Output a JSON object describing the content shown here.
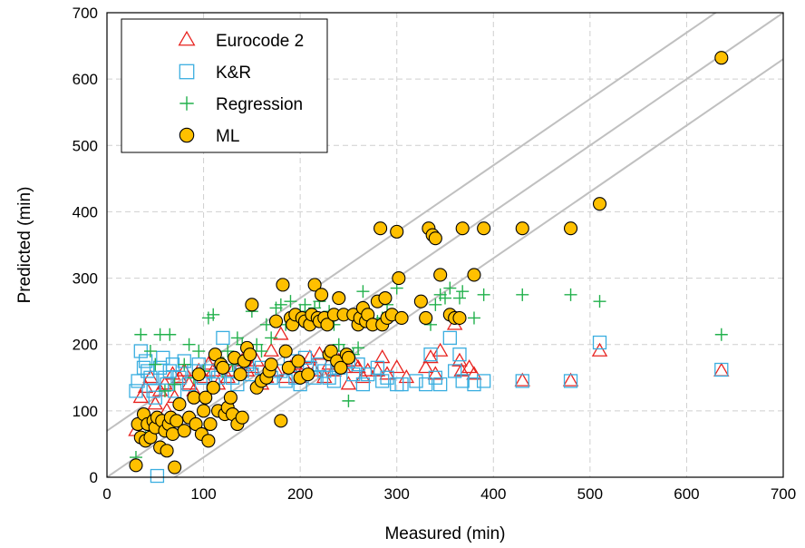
{
  "chart_data": {
    "type": "scatter",
    "title": "",
    "xlabel": "Measured (min)",
    "ylabel": "Predicted (min)",
    "xlim": [
      0,
      700
    ],
    "ylim": [
      0,
      700
    ],
    "xticks": [
      "0",
      "100",
      "200",
      "300",
      "400",
      "500",
      "600",
      "700"
    ],
    "yticks": [
      "0",
      "100",
      "200",
      "300",
      "400",
      "500",
      "600",
      "700"
    ],
    "grid": true,
    "legend_position": "top-left",
    "reference_lines": [
      {
        "slope": 1,
        "intercept": 70
      },
      {
        "slope": 1,
        "intercept": 0
      },
      {
        "slope": 1,
        "intercept": -70
      }
    ],
    "series": [
      {
        "name": "Eurocode 2",
        "marker": "triangle",
        "color": "#e8231f",
        "points": [
          [
            30,
            70
          ],
          [
            35,
            120
          ],
          [
            40,
            135
          ],
          [
            42,
            90
          ],
          [
            45,
            150
          ],
          [
            50,
            110
          ],
          [
            55,
            130
          ],
          [
            60,
            140
          ],
          [
            62,
            100
          ],
          [
            68,
            155
          ],
          [
            70,
            120
          ],
          [
            75,
            150
          ],
          [
            80,
            160
          ],
          [
            85,
            140
          ],
          [
            90,
            130
          ],
          [
            95,
            160
          ],
          [
            100,
            150
          ],
          [
            105,
            170
          ],
          [
            110,
            160
          ],
          [
            115,
            140
          ],
          [
            120,
            170
          ],
          [
            125,
            150
          ],
          [
            130,
            160
          ],
          [
            140,
            175
          ],
          [
            145,
            160
          ],
          [
            150,
            165
          ],
          [
            155,
            175
          ],
          [
            160,
            140
          ],
          [
            165,
            150
          ],
          [
            170,
            190
          ],
          [
            175,
            160
          ],
          [
            180,
            215
          ],
          [
            185,
            150
          ],
          [
            190,
            165
          ],
          [
            195,
            170
          ],
          [
            200,
            150
          ],
          [
            205,
            165
          ],
          [
            210,
            180
          ],
          [
            215,
            160
          ],
          [
            220,
            185
          ],
          [
            225,
            150
          ],
          [
            230,
            170
          ],
          [
            235,
            160
          ],
          [
            240,
            175
          ],
          [
            245,
            165
          ],
          [
            250,
            140
          ],
          [
            255,
            175
          ],
          [
            260,
            165
          ],
          [
            265,
            150
          ],
          [
            270,
            160
          ],
          [
            280,
            160
          ],
          [
            285,
            180
          ],
          [
            290,
            155
          ],
          [
            300,
            165
          ],
          [
            310,
            150
          ],
          [
            330,
            165
          ],
          [
            335,
            180
          ],
          [
            340,
            155
          ],
          [
            345,
            190
          ],
          [
            360,
            230
          ],
          [
            365,
            175
          ],
          [
            367,
            160
          ],
          [
            375,
            165
          ],
          [
            380,
            155
          ],
          [
            430,
            145
          ],
          [
            480,
            145
          ],
          [
            510,
            190
          ],
          [
            636,
            160
          ]
        ]
      },
      {
        "name": "K&R",
        "marker": "square",
        "color": "#3aaee0",
        "points": [
          [
            30,
            130
          ],
          [
            32,
            145
          ],
          [
            35,
            190
          ],
          [
            38,
            165
          ],
          [
            40,
            175
          ],
          [
            42,
            160
          ],
          [
            45,
            150
          ],
          [
            48,
            130
          ],
          [
            50,
            120
          ],
          [
            52,
            2
          ],
          [
            55,
            165
          ],
          [
            58,
            180
          ],
          [
            60,
            150
          ],
          [
            62,
            140
          ],
          [
            65,
            160
          ],
          [
            68,
            170
          ],
          [
            70,
            130
          ],
          [
            75,
            150
          ],
          [
            80,
            175
          ],
          [
            85,
            140
          ],
          [
            90,
            160
          ],
          [
            95,
            170
          ],
          [
            100,
            150
          ],
          [
            105,
            160
          ],
          [
            110,
            140
          ],
          [
            115,
            150
          ],
          [
            120,
            210
          ],
          [
            125,
            160
          ],
          [
            130,
            150
          ],
          [
            135,
            140
          ],
          [
            140,
            160
          ],
          [
            145,
            170
          ],
          [
            150,
            155
          ],
          [
            160,
            165
          ],
          [
            170,
            150
          ],
          [
            180,
            160
          ],
          [
            185,
            145
          ],
          [
            190,
            175
          ],
          [
            195,
            150
          ],
          [
            200,
            140
          ],
          [
            205,
            180
          ],
          [
            210,
            165
          ],
          [
            215,
            150
          ],
          [
            220,
            170
          ],
          [
            225,
            160
          ],
          [
            230,
            150
          ],
          [
            235,
            145
          ],
          [
            240,
            165
          ],
          [
            250,
            175
          ],
          [
            255,
            155
          ],
          [
            260,
            170
          ],
          [
            265,
            140
          ],
          [
            270,
            155
          ],
          [
            280,
            165
          ],
          [
            285,
            145
          ],
          [
            290,
            150
          ],
          [
            300,
            140
          ],
          [
            305,
            140
          ],
          [
            320,
            145
          ],
          [
            330,
            140
          ],
          [
            335,
            185
          ],
          [
            340,
            150
          ],
          [
            345,
            140
          ],
          [
            355,
            210
          ],
          [
            360,
            160
          ],
          [
            365,
            185
          ],
          [
            368,
            145
          ],
          [
            380,
            140
          ],
          [
            390,
            145
          ],
          [
            430,
            145
          ],
          [
            480,
            145
          ],
          [
            510,
            203
          ],
          [
            636,
            162
          ]
        ]
      },
      {
        "name": "Regression",
        "marker": "plus",
        "color": "#22b14c",
        "points": [
          [
            30,
            30
          ],
          [
            35,
            215
          ],
          [
            40,
            60
          ],
          [
            45,
            190
          ],
          [
            50,
            170
          ],
          [
            55,
            215
          ],
          [
            60,
            130
          ],
          [
            65,
            215
          ],
          [
            70,
            140
          ],
          [
            75,
            110
          ],
          [
            80,
            170
          ],
          [
            85,
            200
          ],
          [
            90,
            150
          ],
          [
            95,
            190
          ],
          [
            100,
            160
          ],
          [
            105,
            240
          ],
          [
            110,
            245
          ],
          [
            115,
            180
          ],
          [
            120,
            160
          ],
          [
            125,
            190
          ],
          [
            130,
            170
          ],
          [
            135,
            210
          ],
          [
            140,
            200
          ],
          [
            145,
            180
          ],
          [
            150,
            250
          ],
          [
            155,
            200
          ],
          [
            160,
            190
          ],
          [
            165,
            230
          ],
          [
            170,
            210
          ],
          [
            175,
            255
          ],
          [
            180,
            260
          ],
          [
            185,
            230
          ],
          [
            190,
            265
          ],
          [
            195,
            230
          ],
          [
            200,
            250
          ],
          [
            205,
            260
          ],
          [
            210,
            245
          ],
          [
            215,
            255
          ],
          [
            220,
            265
          ],
          [
            225,
            240
          ],
          [
            230,
            250
          ],
          [
            235,
            230
          ],
          [
            240,
            200
          ],
          [
            245,
            190
          ],
          [
            250,
            115
          ],
          [
            255,
            185
          ],
          [
            260,
            195
          ],
          [
            265,
            280
          ],
          [
            270,
            240
          ],
          [
            280,
            235
          ],
          [
            285,
            240
          ],
          [
            290,
            260
          ],
          [
            300,
            285
          ],
          [
            330,
            240
          ],
          [
            335,
            230
          ],
          [
            340,
            260
          ],
          [
            345,
            275
          ],
          [
            350,
            270
          ],
          [
            355,
            285
          ],
          [
            360,
            240
          ],
          [
            365,
            270
          ],
          [
            368,
            280
          ],
          [
            380,
            240
          ],
          [
            390,
            275
          ],
          [
            430,
            275
          ],
          [
            480,
            275
          ],
          [
            510,
            265
          ],
          [
            636,
            215
          ]
        ]
      },
      {
        "name": "ML",
        "marker": "circle",
        "color": "#ffc000",
        "points": [
          [
            30,
            18
          ],
          [
            32,
            80
          ],
          [
            35,
            60
          ],
          [
            38,
            95
          ],
          [
            40,
            55
          ],
          [
            42,
            80
          ],
          [
            45,
            60
          ],
          [
            48,
            85
          ],
          [
            50,
            75
          ],
          [
            52,
            90
          ],
          [
            55,
            45
          ],
          [
            57,
            85
          ],
          [
            60,
            70
          ],
          [
            62,
            40
          ],
          [
            64,
            80
          ],
          [
            66,
            90
          ],
          [
            68,
            65
          ],
          [
            70,
            15
          ],
          [
            72,
            85
          ],
          [
            75,
            110
          ],
          [
            80,
            70
          ],
          [
            85,
            90
          ],
          [
            90,
            120
          ],
          [
            92,
            80
          ],
          [
            95,
            155
          ],
          [
            98,
            65
          ],
          [
            100,
            100
          ],
          [
            102,
            120
          ],
          [
            105,
            55
          ],
          [
            107,
            80
          ],
          [
            110,
            135
          ],
          [
            112,
            185
          ],
          [
            115,
            100
          ],
          [
            118,
            170
          ],
          [
            120,
            165
          ],
          [
            122,
            95
          ],
          [
            125,
            105
          ],
          [
            128,
            120
          ],
          [
            130,
            95
          ],
          [
            132,
            180
          ],
          [
            135,
            80
          ],
          [
            138,
            155
          ],
          [
            140,
            90
          ],
          [
            142,
            175
          ],
          [
            145,
            195
          ],
          [
            148,
            185
          ],
          [
            150,
            260
          ],
          [
            155,
            135
          ],
          [
            160,
            145
          ],
          [
            165,
            150
          ],
          [
            168,
            160
          ],
          [
            170,
            170
          ],
          [
            175,
            235
          ],
          [
            180,
            85
          ],
          [
            182,
            290
          ],
          [
            185,
            190
          ],
          [
            188,
            165
          ],
          [
            190,
            240
          ],
          [
            192,
            230
          ],
          [
            195,
            245
          ],
          [
            198,
            175
          ],
          [
            200,
            150
          ],
          [
            202,
            240
          ],
          [
            205,
            235
          ],
          [
            208,
            155
          ],
          [
            210,
            230
          ],
          [
            212,
            245
          ],
          [
            215,
            290
          ],
          [
            218,
            240
          ],
          [
            220,
            235
          ],
          [
            222,
            275
          ],
          [
            225,
            240
          ],
          [
            228,
            230
          ],
          [
            230,
            185
          ],
          [
            232,
            190
          ],
          [
            235,
            245
          ],
          [
            238,
            175
          ],
          [
            240,
            270
          ],
          [
            242,
            165
          ],
          [
            245,
            245
          ],
          [
            248,
            185
          ],
          [
            250,
            180
          ],
          [
            255,
            245
          ],
          [
            260,
            230
          ],
          [
            262,
            240
          ],
          [
            265,
            255
          ],
          [
            268,
            235
          ],
          [
            270,
            245
          ],
          [
            275,
            230
          ],
          [
            280,
            265
          ],
          [
            283,
            375
          ],
          [
            285,
            230
          ],
          [
            288,
            270
          ],
          [
            290,
            240
          ],
          [
            295,
            245
          ],
          [
            300,
            370
          ],
          [
            302,
            300
          ],
          [
            305,
            240
          ],
          [
            325,
            265
          ],
          [
            330,
            240
          ],
          [
            333,
            375
          ],
          [
            337,
            365
          ],
          [
            340,
            360
          ],
          [
            345,
            305
          ],
          [
            355,
            245
          ],
          [
            360,
            240
          ],
          [
            365,
            240
          ],
          [
            368,
            375
          ],
          [
            380,
            305
          ],
          [
            390,
            375
          ],
          [
            430,
            375
          ],
          [
            480,
            375
          ],
          [
            510,
            412
          ],
          [
            636,
            632
          ]
        ]
      }
    ]
  }
}
